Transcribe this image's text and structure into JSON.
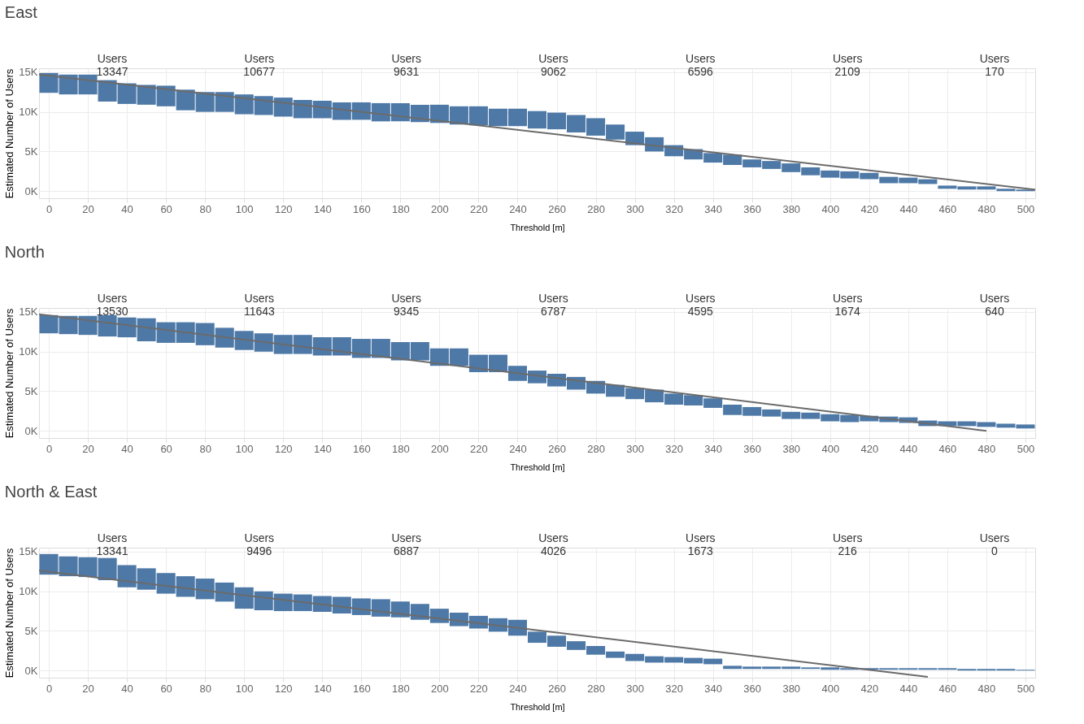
{
  "chart_data": [
    {
      "type": "bar",
      "title": "East",
      "xlabel": "Threshold [m]",
      "ylabel": "Estimated Number of Users",
      "x": [
        0,
        10,
        20,
        30,
        40,
        50,
        60,
        70,
        80,
        90,
        100,
        110,
        120,
        130,
        140,
        150,
        160,
        170,
        180,
        190,
        200,
        210,
        220,
        230,
        240,
        250,
        260,
        270,
        280,
        290,
        300,
        310,
        320,
        330,
        340,
        350,
        360,
        370,
        380,
        390,
        400,
        410,
        420,
        430,
        440,
        450,
        460,
        470,
        480,
        490,
        500
      ],
      "series": [
        {
          "type": "bar",
          "color": "#4e79a7",
          "base": [
            12400,
            12200,
            12200,
            11300,
            11000,
            10900,
            10700,
            10200,
            10000,
            10000,
            9700,
            9600,
            9400,
            9200,
            9200,
            9000,
            9000,
            8800,
            8800,
            8700,
            8600,
            8400,
            8300,
            8200,
            8200,
            7900,
            7800,
            7400,
            7000,
            6500,
            5800,
            5000,
            4400,
            4000,
            3600,
            3300,
            3000,
            2800,
            2400,
            2000,
            1700,
            1600,
            1500,
            1000,
            1000,
            900,
            300,
            200,
            200,
            0,
            0
          ],
          "values": [
            2500,
            2500,
            2500,
            2700,
            2600,
            2500,
            2600,
            2600,
            2500,
            2500,
            2500,
            2400,
            2400,
            2300,
            2200,
            2200,
            2200,
            2300,
            2300,
            2200,
            2300,
            2300,
            2400,
            2200,
            2200,
            2200,
            2100,
            2200,
            2200,
            1900,
            1700,
            1800,
            1400,
            1300,
            1200,
            1300,
            1000,
            1000,
            1100,
            1000,
            900,
            900,
            800,
            800,
            700,
            600,
            400,
            400,
            400,
            300,
            200
          ]
        },
        {
          "type": "line",
          "color": "#6b6b6b",
          "x": [
            -5,
            505
          ],
          "values": [
            14700,
            200
          ]
        }
      ],
      "xlim": [
        -5,
        505
      ],
      "xticks": [
        0,
        20,
        40,
        60,
        80,
        100,
        120,
        140,
        160,
        180,
        200,
        220,
        240,
        260,
        280,
        300,
        320,
        340,
        360,
        380,
        400,
        420,
        440,
        460,
        480,
        500
      ],
      "ylim": [
        -900,
        15500
      ],
      "yticks": [
        {
          "value": 0,
          "label": "0K"
        },
        {
          "value": 5000,
          "label": "5K"
        },
        {
          "value": 10000,
          "label": "10K"
        },
        {
          "value": 15000,
          "label": "15K"
        }
      ],
      "grid": true,
      "annotations": [
        "Users\n13347",
        "Users\n10677",
        "Users\n9631",
        "Users\n9062",
        "Users\n6596",
        "Users\n2109",
        "Users\n170"
      ]
    },
    {
      "type": "bar",
      "title": "North",
      "xlabel": "Threshold [m]",
      "ylabel": "Estimated Number of Users",
      "x": [
        0,
        10,
        20,
        30,
        40,
        50,
        60,
        70,
        80,
        90,
        100,
        110,
        120,
        130,
        140,
        150,
        160,
        170,
        180,
        190,
        200,
        210,
        220,
        230,
        240,
        250,
        260,
        270,
        280,
        290,
        300,
        310,
        320,
        330,
        340,
        350,
        360,
        370,
        380,
        390,
        400,
        410,
        420,
        430,
        440,
        450,
        460,
        470,
        480,
        490,
        500
      ],
      "series": [
        {
          "type": "bar",
          "color": "#4e79a7",
          "base": [
            12300,
            12200,
            12100,
            11900,
            11800,
            11300,
            11100,
            11100,
            10800,
            10500,
            10200,
            10000,
            9700,
            9700,
            9500,
            9500,
            9200,
            9200,
            8900,
            8900,
            8200,
            8200,
            7400,
            7400,
            6300,
            6000,
            5600,
            5200,
            4700,
            4300,
            4000,
            3600,
            3300,
            3200,
            2900,
            2000,
            1900,
            1800,
            1500,
            1500,
            1200,
            1100,
            1200,
            1100,
            1000,
            600,
            600,
            600,
            500,
            400,
            300
          ],
          "values": [
            2300,
            2300,
            2400,
            2700,
            2500,
            2900,
            2600,
            2600,
            2800,
            2500,
            2400,
            2300,
            2400,
            2400,
            2300,
            2300,
            2400,
            2400,
            2300,
            2300,
            2200,
            2200,
            2200,
            2200,
            1900,
            1600,
            1600,
            1600,
            1600,
            1500,
            1400,
            1600,
            1400,
            1300,
            1200,
            1300,
            1100,
            900,
            900,
            800,
            900,
            900,
            700,
            700,
            700,
            700,
            600,
            600,
            600,
            500,
            500
          ]
        },
        {
          "type": "line",
          "color": "#6b6b6b",
          "x": [
            -5,
            480
          ],
          "values": [
            14700,
            0
          ]
        }
      ],
      "xlim": [
        -5,
        505
      ],
      "xticks": [
        0,
        20,
        40,
        60,
        80,
        100,
        120,
        140,
        160,
        180,
        200,
        220,
        240,
        260,
        280,
        300,
        320,
        340,
        360,
        380,
        400,
        420,
        440,
        460,
        480,
        500
      ],
      "ylim": [
        -900,
        15500
      ],
      "yticks": [
        {
          "value": 0,
          "label": "0K"
        },
        {
          "value": 5000,
          "label": "5K"
        },
        {
          "value": 10000,
          "label": "10K"
        },
        {
          "value": 15000,
          "label": "15K"
        }
      ],
      "grid": true,
      "annotations": [
        "Users\n13530",
        "Users\n11643",
        "Users\n9345",
        "Users\n6787",
        "Users\n4595",
        "Users\n1674",
        "Users\n640"
      ]
    },
    {
      "type": "bar",
      "title": "North & East",
      "xlabel": "Threshold [m]",
      "ylabel": "Estimated Number of Users",
      "x": [
        0,
        10,
        20,
        30,
        40,
        50,
        60,
        70,
        80,
        90,
        100,
        110,
        120,
        130,
        140,
        150,
        160,
        170,
        180,
        190,
        200,
        210,
        220,
        230,
        240,
        250,
        260,
        270,
        280,
        290,
        300,
        310,
        320,
        330,
        340,
        350,
        360,
        370,
        380,
        390,
        400,
        410,
        420,
        430,
        440,
        450,
        460,
        470,
        480,
        490,
        500
      ],
      "series": [
        {
          "type": "bar",
          "color": "#4e79a7",
          "base": [
            12100,
            11900,
            11800,
            11400,
            10500,
            10200,
            9700,
            9300,
            9000,
            8700,
            7800,
            7600,
            7500,
            7500,
            7400,
            7200,
            7000,
            6800,
            6700,
            6400,
            6000,
            5600,
            5300,
            4900,
            4400,
            3500,
            3000,
            2600,
            2000,
            1600,
            1200,
            1000,
            1000,
            900,
            800,
            200,
            200,
            200,
            200,
            200,
            100,
            100,
            100,
            100,
            100,
            100,
            100,
            0,
            0,
            0,
            0
          ],
          "values": [
            2600,
            2500,
            2500,
            2800,
            2800,
            2700,
            2600,
            2600,
            2600,
            2400,
            2700,
            2400,
            2200,
            2100,
            2000,
            2100,
            2100,
            2200,
            2000,
            2000,
            1800,
            1700,
            1600,
            1700,
            2000,
            1400,
            1400,
            1100,
            1100,
            800,
            900,
            800,
            700,
            700,
            700,
            400,
            300,
            300,
            300,
            200,
            300,
            200,
            200,
            200,
            200,
            200,
            200,
            200,
            200,
            200,
            100
          ]
        },
        {
          "type": "line",
          "color": "#6b6b6b",
          "x": [
            -5,
            450
          ],
          "values": [
            12600,
            -800
          ]
        }
      ],
      "xlim": [
        -5,
        505
      ],
      "xticks": [
        0,
        20,
        40,
        60,
        80,
        100,
        120,
        140,
        160,
        180,
        200,
        220,
        240,
        260,
        280,
        300,
        320,
        340,
        360,
        380,
        400,
        420,
        440,
        460,
        480,
        500
      ],
      "ylim": [
        -900,
        15500
      ],
      "yticks": [
        {
          "value": 0,
          "label": "0K"
        },
        {
          "value": 5000,
          "label": "5K"
        },
        {
          "value": 10000,
          "label": "10K"
        },
        {
          "value": 15000,
          "label": "15K"
        }
      ],
      "grid": true,
      "annotations": [
        "Users\n13341",
        "Users\n9496",
        "Users\n6887",
        "Users\n4026",
        "Users\n1673",
        "Users\n216",
        "Users\n0"
      ]
    }
  ]
}
